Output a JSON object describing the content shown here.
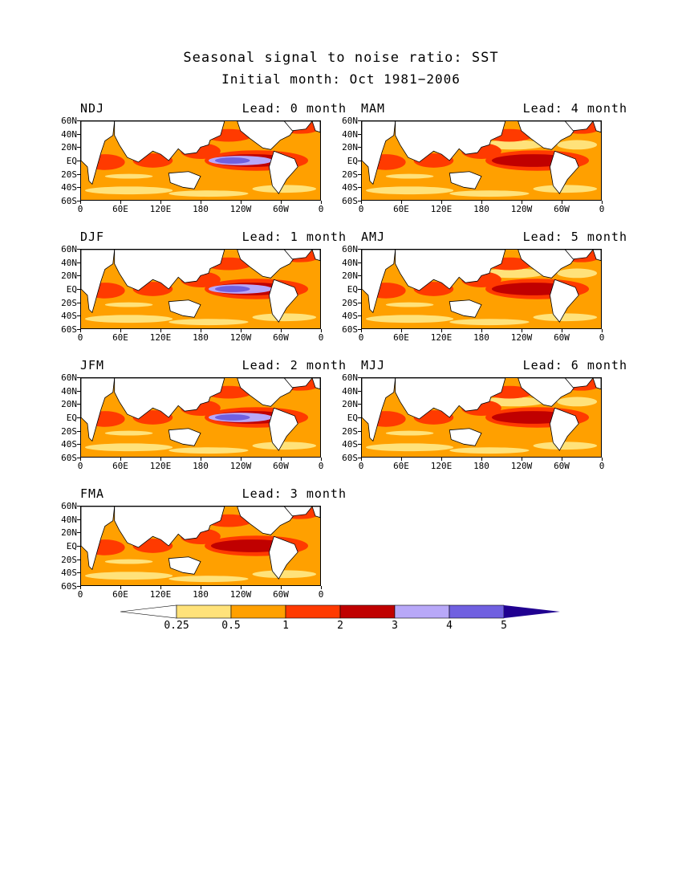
{
  "title": "Seasonal signal to noise ratio: SST",
  "subtitle": "Initial month: Oct 1981−2006",
  "y_ticks": [
    "60N",
    "40N",
    "20N",
    "EQ",
    "20S",
    "40S",
    "60S"
  ],
  "x_ticks": [
    "0",
    "60E",
    "120E",
    "180",
    "120W",
    "60W",
    "0"
  ],
  "panels": [
    {
      "season": "NDJ",
      "lead": "Lead: 0 month",
      "max_level": 5
    },
    {
      "season": "MAM",
      "lead": "Lead: 4 month",
      "max_level": 4
    },
    {
      "season": "DJF",
      "lead": "Lead: 1 month",
      "max_level": 5
    },
    {
      "season": "AMJ",
      "lead": "Lead: 5 month",
      "max_level": 4
    },
    {
      "season": "JFM",
      "lead": "Lead: 2 month",
      "max_level": 5
    },
    {
      "season": "MJJ",
      "lead": "Lead: 6 month",
      "max_level": 4
    },
    {
      "season": "FMA",
      "lead": "Lead: 3 month",
      "max_level": 4
    }
  ],
  "colorbar": {
    "labels": [
      "0.25",
      "0.5",
      "1",
      "2",
      "3",
      "4",
      "5"
    ],
    "colors": [
      "#ffffff",
      "#ffe27a",
      "#ffa000",
      "#ff3a00",
      "#c00000",
      "#b8a8f8",
      "#7060e0",
      "#200090"
    ]
  }
}
